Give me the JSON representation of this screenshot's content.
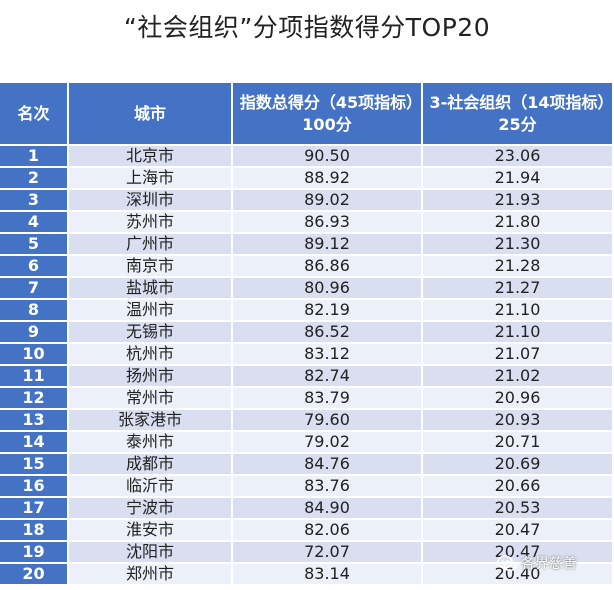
{
  "title": "“社会组织”分项指数得分TOP20",
  "table": {
    "headers": {
      "rank": "名次",
      "city": "城市",
      "total": "指数总得分（45项指标）100分",
      "social": "3-社会组织（14项指标）25分"
    },
    "rows": [
      {
        "rank": "1",
        "city": "北京市",
        "total": "90.50",
        "social": "23.06"
      },
      {
        "rank": "2",
        "city": "上海市",
        "total": "88.92",
        "social": "21.94"
      },
      {
        "rank": "3",
        "city": "深圳市",
        "total": "89.02",
        "social": "21.93"
      },
      {
        "rank": "4",
        "city": "苏州市",
        "total": "86.93",
        "social": "21.80"
      },
      {
        "rank": "5",
        "city": "广州市",
        "total": "89.12",
        "social": "21.30"
      },
      {
        "rank": "6",
        "city": "南京市",
        "total": "86.86",
        "social": "21.28"
      },
      {
        "rank": "7",
        "city": "盐城市",
        "total": "80.96",
        "social": "21.27"
      },
      {
        "rank": "8",
        "city": "温州市",
        "total": "82.19",
        "social": "21.10"
      },
      {
        "rank": "9",
        "city": "无锡市",
        "total": "86.52",
        "social": "21.10"
      },
      {
        "rank": "10",
        "city": "杭州市",
        "total": "83.12",
        "social": "21.07"
      },
      {
        "rank": "11",
        "city": "扬州市",
        "total": "82.74",
        "social": "21.02"
      },
      {
        "rank": "12",
        "city": "常州市",
        "total": "83.79",
        "social": "20.96"
      },
      {
        "rank": "13",
        "city": "张家港市",
        "total": "79.60",
        "social": "20.93"
      },
      {
        "rank": "14",
        "city": "泰州市",
        "total": "79.02",
        "social": "20.71"
      },
      {
        "rank": "15",
        "city": "成都市",
        "total": "84.76",
        "social": "20.69"
      },
      {
        "rank": "16",
        "city": "临沂市",
        "total": "83.76",
        "social": "20.66"
      },
      {
        "rank": "17",
        "city": "宁波市",
        "total": "84.90",
        "social": "20.53"
      },
      {
        "rank": "18",
        "city": "淮安市",
        "total": "82.06",
        "social": "20.47"
      },
      {
        "rank": "19",
        "city": "沈阳市",
        "total": "72.07",
        "social": "20.47"
      },
      {
        "rank": "20",
        "city": "郑州市",
        "total": "83.14",
        "social": "20.40"
      }
    ]
  },
  "watermark": {
    "text": "各界慈善",
    "icon": "wechat-icon"
  },
  "colors": {
    "header_bg": "#4472c4",
    "row_odd": "#d9dff0",
    "row_even": "#ecf0f8"
  }
}
